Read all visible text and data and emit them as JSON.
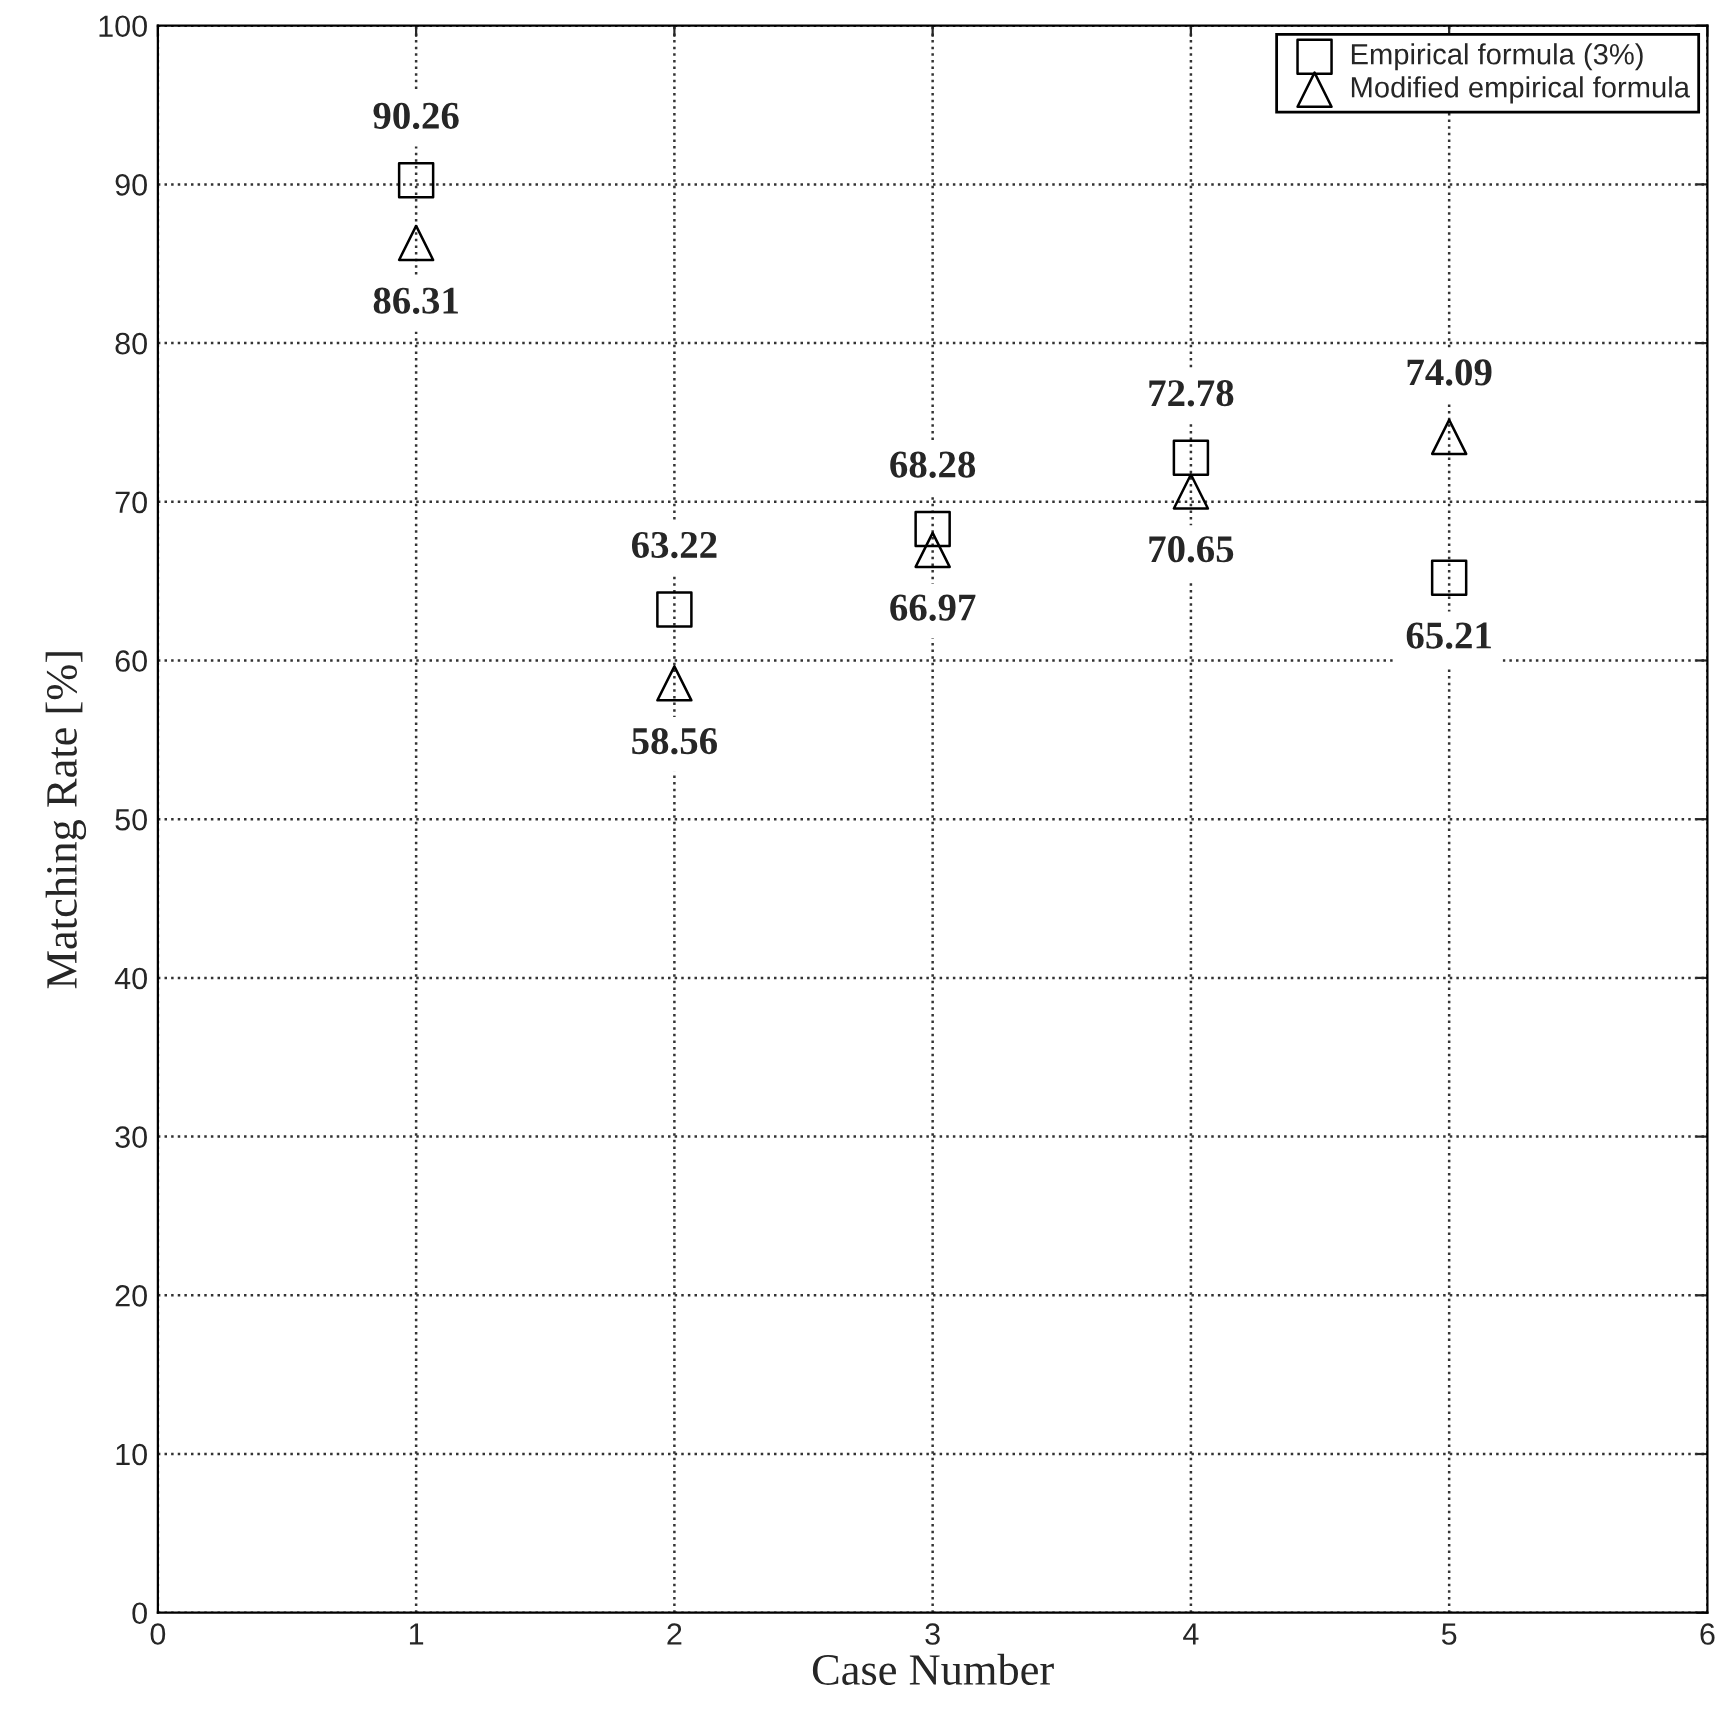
{
  "chart_data": {
    "type": "scatter",
    "xlabel": "Case Number",
    "ylabel": "Matching Rate [%]",
    "x": [
      1,
      2,
      3,
      4,
      5
    ],
    "series": [
      {
        "name": "Empirical formula (3%)",
        "color": "#000000",
        "marker": "square",
        "values": [
          90.26,
          63.22,
          68.28,
          72.78,
          65.21
        ]
      },
      {
        "name": "Modified empirical formula",
        "color": "#000000",
        "marker": "triangle",
        "values": [
          86.31,
          58.56,
          66.97,
          70.65,
          74.09
        ]
      }
    ],
    "xlim": [
      0,
      6
    ],
    "xticks": [
      0,
      1,
      2,
      3,
      4,
      5,
      6
    ],
    "ylim": [
      0,
      100
    ],
    "yticks": [
      0,
      10,
      20,
      30,
      40,
      50,
      60,
      70,
      80,
      90,
      100
    ],
    "grid": true,
    "legend": "top right",
    "data_labels": true
  }
}
